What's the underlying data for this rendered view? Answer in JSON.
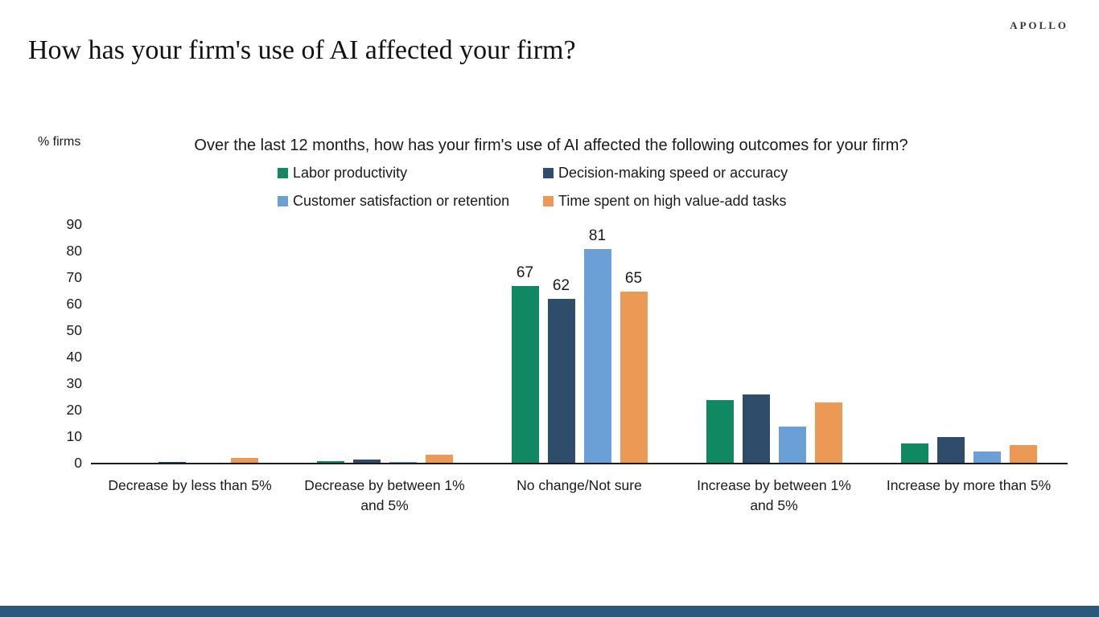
{
  "page": {
    "logo": "APOLLO",
    "title": "How has your firm's use of AI affected your firm?",
    "background": "#ffffff",
    "axis_color": "#1a1a1a",
    "footer_bar_color": "#2e5879"
  },
  "chart_data": {
    "type": "bar",
    "title": "Over the last 12 months, how has your firm's use of AI affected the following outcomes for your firm?",
    "ylabel": "% firms",
    "xlabel": "",
    "ylim": [
      0,
      95
    ],
    "yticks": [
      0,
      10,
      20,
      30,
      40,
      50,
      60,
      70,
      80,
      90
    ],
    "grid": false,
    "legend_position": "top",
    "categories": [
      "Decrease by less than 5%",
      "Decrease by between 1% and 5%",
      "No change/Not sure",
      "Increase by between 1% and 5%",
      "Increase by more than 5%"
    ],
    "series": [
      {
        "name": "Labor productivity",
        "color": "#108962",
        "values": [
          0.4,
          0.8,
          67,
          24,
          7.5
        ]
      },
      {
        "name": "Decision-making speed or accuracy",
        "color": "#2f4d6b",
        "values": [
          0.7,
          1.4,
          62,
          26,
          10
        ]
      },
      {
        "name": "Customer satisfaction or retention",
        "color": "#6ba0d6",
        "values": [
          0.3,
          0.7,
          81,
          14,
          4.5
        ]
      },
      {
        "name": "Time spent on high value-add tasks",
        "color": "#ec9956",
        "values": [
          2,
          3.3,
          65,
          23,
          7
        ]
      }
    ],
    "data_labels": {
      "category_index": 2,
      "values": [
        67,
        62,
        81,
        65
      ]
    }
  }
}
